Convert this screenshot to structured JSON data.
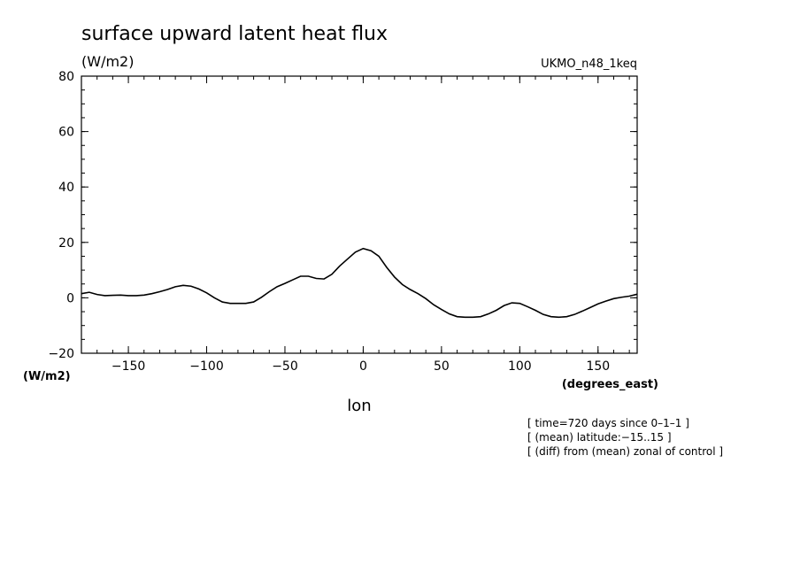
{
  "chart_data": {
    "type": "line",
    "title": "surface upward latent heat flux",
    "units_label": "(W/m2)",
    "ylabel_bottom": "(W/m2)",
    "dataset_label": "UKMO_n48_1keq",
    "xlabel": "lon",
    "xunits": "(degrees_east)",
    "xlim": [
      -180,
      175
    ],
    "ylim": [
      -20,
      80
    ],
    "xticks": [
      -150,
      -100,
      -50,
      0,
      50,
      100,
      150
    ],
    "xtick_labels": [
      "−150",
      "−100",
      "−50",
      "0",
      "50",
      "100",
      "150"
    ],
    "yticks": [
      -20,
      0,
      20,
      40,
      60,
      80
    ],
    "ytick_labels": [
      "−20",
      "0",
      "20",
      "40",
      "60",
      "80"
    ],
    "grid": false,
    "legend": "none",
    "notes": [
      "[ time=720 days since 0–1–1 ]",
      "[ (mean) latitude:−15..15 ]",
      "[ (diff) from (mean) zonal of control ]"
    ],
    "series": [
      {
        "x": [
          -180,
          -175,
          -170,
          -165,
          -160,
          -155,
          -150,
          -145,
          -140,
          -135,
          -130,
          -125,
          -120,
          -115,
          -110,
          -105,
          -100,
          -95,
          -90,
          -85,
          -80,
          -75,
          -70,
          -65,
          -60,
          -55,
          -50,
          -45,
          -40,
          -35,
          -30,
          -25,
          -20,
          -15,
          -10,
          -5,
          0,
          5,
          10,
          15,
          20,
          25,
          30,
          35,
          40,
          45,
          50,
          55,
          60,
          65,
          70,
          75,
          80,
          85,
          90,
          95,
          100,
          105,
          110,
          115,
          120,
          125,
          130,
          135,
          140,
          145,
          150,
          155,
          160,
          165,
          170,
          175
        ],
        "values": [
          1.5,
          2,
          1.2,
          0.8,
          0.9,
          1,
          0.8,
          0.8,
          1,
          1.5,
          2.2,
          3,
          4,
          4.5,
          4.2,
          3.2,
          1.8,
          0,
          -1.5,
          -2,
          -2,
          -2,
          -1.5,
          0.2,
          2.2,
          4,
          5.2,
          6.5,
          7.8,
          7.8,
          7,
          6.8,
          8.5,
          11.5,
          14,
          16.5,
          17.8,
          17,
          15,
          11,
          7.5,
          4.8,
          3,
          1.5,
          -0.3,
          -2.5,
          -4.2,
          -5.8,
          -6.8,
          -7,
          -7,
          -6.8,
          -5.8,
          -4.5,
          -2.8,
          -1.8,
          -2,
          -3.2,
          -4.5,
          -6,
          -6.8,
          -7,
          -6.8,
          -6,
          -4.8,
          -3.5,
          -2.2,
          -1.2,
          -0.3,
          0.2,
          0.6,
          1.3
        ]
      }
    ]
  }
}
